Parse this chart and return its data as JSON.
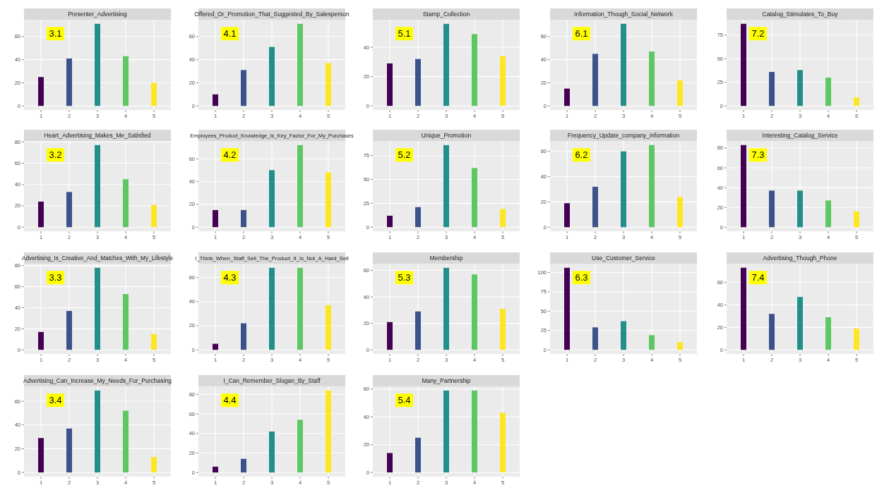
{
  "chart_data": [
    {
      "type": "bar",
      "title": "Presenter_Advertising",
      "categories": [
        "1",
        "2",
        "3",
        "4",
        "5"
      ],
      "values": [
        25,
        41,
        71,
        43,
        20
      ],
      "colors": [
        "#440154",
        "#3b528b",
        "#21908c",
        "#5dc863",
        "#fde725"
      ],
      "ylim": [
        -3.5,
        74.5
      ],
      "yticks": [
        0,
        20,
        40,
        60
      ],
      "grid": true,
      "annotations": [
        "3.1"
      ]
    },
    {
      "type": "bar",
      "title": "Offered_Or_Promotion_That_Suggested_By_Salesperson",
      "categories": [
        "1",
        "2",
        "3",
        "4",
        "5"
      ],
      "values": [
        10,
        31,
        51,
        71,
        37
      ],
      "colors": [
        "#440154",
        "#3b528b",
        "#21908c",
        "#5dc863",
        "#fde725"
      ],
      "ylim": [
        -3.5,
        74.5
      ],
      "yticks": [
        0,
        20,
        40,
        60
      ],
      "grid": true,
      "annotations": [
        "4.1"
      ]
    },
    {
      "type": "bar",
      "title": "Stamp_Collection",
      "categories": [
        "1",
        "2",
        "3",
        "4",
        "5"
      ],
      "values": [
        29,
        32,
        56,
        49,
        34
      ],
      "colors": [
        "#440154",
        "#3b528b",
        "#21908c",
        "#5dc863",
        "#fde725"
      ],
      "ylim": [
        -2.8,
        58.8
      ],
      "yticks": [
        0,
        20,
        40
      ],
      "grid": true,
      "annotations": [
        "5.1"
      ]
    },
    {
      "type": "bar",
      "title": "Information_Though_Social_Network",
      "categories": [
        "1",
        "2",
        "3",
        "4",
        "5"
      ],
      "values": [
        15,
        45,
        71,
        47,
        22
      ],
      "colors": [
        "#440154",
        "#3b528b",
        "#21908c",
        "#5dc863",
        "#fde725"
      ],
      "ylim": [
        -3.5,
        74.5
      ],
      "yticks": [
        0,
        20,
        40,
        60
      ],
      "grid": true,
      "annotations": [
        "6.1"
      ]
    },
    {
      "type": "bar",
      "title": "Catalog_Stimulates_To_Buy",
      "categories": [
        "1",
        "2",
        "3",
        "4",
        "5"
      ],
      "values": [
        87,
        36,
        38,
        30,
        9
      ],
      "colors": [
        "#440154",
        "#3b528b",
        "#21908c",
        "#5dc863",
        "#fde725"
      ],
      "ylim": [
        -4.3,
        91.3
      ],
      "yticks": [
        0,
        25,
        50,
        75
      ],
      "grid": true,
      "annotations": [
        "7.2"
      ]
    },
    {
      "type": "bar",
      "title": "Heart_Advertising_Makes_Me_Satisfied",
      "categories": [
        "1",
        "2",
        "3",
        "4",
        "5"
      ],
      "values": [
        24,
        33,
        77,
        45,
        21
      ],
      "colors": [
        "#440154",
        "#3b528b",
        "#21908c",
        "#5dc863",
        "#fde725"
      ],
      "ylim": [
        -3.8,
        80.8
      ],
      "yticks": [
        0,
        20,
        40,
        60,
        80
      ],
      "grid": true,
      "annotations": [
        "3.2"
      ]
    },
    {
      "type": "bar",
      "title": "Employees_Product_Knowledge_Is_Key_Factor_For_My_Purchases",
      "categories": [
        "1",
        "2",
        "3",
        "4",
        "5"
      ],
      "values": [
        15,
        15,
        50,
        72,
        48
      ],
      "colors": [
        "#440154",
        "#3b528b",
        "#21908c",
        "#5dc863",
        "#fde725"
      ],
      "ylim": [
        -3.6,
        75.6
      ],
      "yticks": [
        0,
        20,
        40,
        60
      ],
      "grid": true,
      "annotations": [
        "4.2"
      ]
    },
    {
      "type": "bar",
      "title": "Unique_Promotion",
      "categories": [
        "1",
        "2",
        "3",
        "4",
        "5"
      ],
      "values": [
        12,
        21,
        86,
        62,
        19
      ],
      "colors": [
        "#440154",
        "#3b528b",
        "#21908c",
        "#5dc863",
        "#fde725"
      ],
      "ylim": [
        -4.3,
        90.3
      ],
      "yticks": [
        0,
        25,
        50,
        75
      ],
      "grid": true,
      "annotations": [
        "5.2"
      ]
    },
    {
      "type": "bar",
      "title": "Frequency_Update_company_information",
      "categories": [
        "1",
        "2",
        "3",
        "4",
        "5"
      ],
      "values": [
        19,
        32,
        60,
        65,
        24
      ],
      "colors": [
        "#440154",
        "#3b528b",
        "#21908c",
        "#5dc863",
        "#fde725"
      ],
      "ylim": [
        -3.2,
        68.2
      ],
      "yticks": [
        0,
        20,
        40,
        60
      ],
      "grid": true,
      "annotations": [
        "6.2"
      ]
    },
    {
      "type": "bar",
      "title": "Interesting_Catalog_Service",
      "categories": [
        "1",
        "2",
        "3",
        "4",
        "5"
      ],
      "values": [
        83,
        37,
        37,
        27,
        16
      ],
      "colors": [
        "#440154",
        "#3b528b",
        "#21908c",
        "#5dc863",
        "#fde725"
      ],
      "ylim": [
        -4.1,
        87.1
      ],
      "yticks": [
        0,
        20,
        40,
        60,
        80
      ],
      "grid": true,
      "annotations": [
        "7.3"
      ]
    },
    {
      "type": "bar",
      "title": "Advertising_Is_Creative_And_Matches_With_My_Lifestyle",
      "categories": [
        "1",
        "2",
        "3",
        "4",
        "5"
      ],
      "values": [
        17,
        37,
        78,
        53,
        15
      ],
      "colors": [
        "#440154",
        "#3b528b",
        "#21908c",
        "#5dc863",
        "#fde725"
      ],
      "ylim": [
        -3.9,
        81.9
      ],
      "yticks": [
        0,
        20,
        40,
        60,
        80
      ],
      "grid": true,
      "annotations": [
        "3.3"
      ]
    },
    {
      "type": "bar",
      "title": "I_Think_When_Staff_Sell_The_Product_It_Is_Not_A_Hard_Sell",
      "categories": [
        "1",
        "2",
        "3",
        "4",
        "5"
      ],
      "values": [
        5,
        22,
        68,
        68,
        37
      ],
      "colors": [
        "#440154",
        "#3b528b",
        "#21908c",
        "#5dc863",
        "#fde725"
      ],
      "ylim": [
        -3.4,
        71.4
      ],
      "yticks": [
        0,
        20,
        40,
        60
      ],
      "grid": true,
      "annotations": [
        "4.3"
      ]
    },
    {
      "type": "bar",
      "title": "Membership",
      "categories": [
        "1",
        "2",
        "3",
        "4",
        "5"
      ],
      "values": [
        21,
        29,
        62,
        57,
        31
      ],
      "colors": [
        "#440154",
        "#3b528b",
        "#21908c",
        "#5dc863",
        "#fde725"
      ],
      "ylim": [
        -3.1,
        65.1
      ],
      "yticks": [
        0,
        20,
        40,
        60
      ],
      "grid": true,
      "annotations": [
        "5.3"
      ]
    },
    {
      "type": "bar",
      "title": "Use_Customer_Service",
      "categories": [
        "1",
        "2",
        "3",
        "4",
        "5"
      ],
      "values": [
        106,
        29,
        37,
        19,
        10
      ],
      "colors": [
        "#440154",
        "#3b528b",
        "#21908c",
        "#5dc863",
        "#fde725"
      ],
      "ylim": [
        -5.3,
        111.3
      ],
      "yticks": [
        0,
        25,
        50,
        75,
        100
      ],
      "grid": true,
      "annotations": [
        "6.3"
      ]
    },
    {
      "type": "bar",
      "title": "Advertising_Though_Phone",
      "categories": [
        "1",
        "2",
        "3",
        "4",
        "5"
      ],
      "values": [
        73,
        32,
        47,
        29,
        19
      ],
      "colors": [
        "#440154",
        "#3b528b",
        "#21908c",
        "#5dc863",
        "#fde725"
      ],
      "ylim": [
        -3.6,
        76.6
      ],
      "yticks": [
        0,
        20,
        40,
        60
      ],
      "grid": true,
      "annotations": [
        "7.4"
      ]
    },
    {
      "type": "bar",
      "title": "Advertising_Can_Increase_My_Needs_For_Purchasing",
      "categories": [
        "1",
        "2",
        "3",
        "4",
        "5"
      ],
      "values": [
        29,
        37,
        69,
        52,
        13
      ],
      "colors": [
        "#440154",
        "#3b528b",
        "#21908c",
        "#5dc863",
        "#fde725"
      ],
      "ylim": [
        -3.5,
        72.5
      ],
      "yticks": [
        0,
        20,
        40,
        60
      ],
      "grid": true,
      "annotations": [
        "3.4"
      ]
    },
    {
      "type": "bar",
      "title": "I_Can_Remember_Slogan_By_Staff",
      "categories": [
        "1",
        "2",
        "3",
        "4",
        "5"
      ],
      "values": [
        6,
        14,
        42,
        54,
        84
      ],
      "colors": [
        "#440154",
        "#3b528b",
        "#21908c",
        "#5dc863",
        "#fde725"
      ],
      "ylim": [
        -4.2,
        88.2
      ],
      "yticks": [
        0,
        20,
        40,
        60,
        80
      ],
      "grid": true,
      "annotations": [
        "4.4"
      ]
    },
    {
      "type": "bar",
      "title": "Many_Partnership",
      "categories": [
        "1",
        "2",
        "3",
        "4",
        "5"
      ],
      "values": [
        14,
        25,
        59,
        59,
        43
      ],
      "colors": [
        "#440154",
        "#3b528b",
        "#21908c",
        "#5dc863",
        "#fde725"
      ],
      "ylim": [
        -3,
        62
      ],
      "yticks": [
        0,
        20,
        40,
        60
      ],
      "grid": true,
      "annotations": [
        "5.4"
      ]
    }
  ]
}
